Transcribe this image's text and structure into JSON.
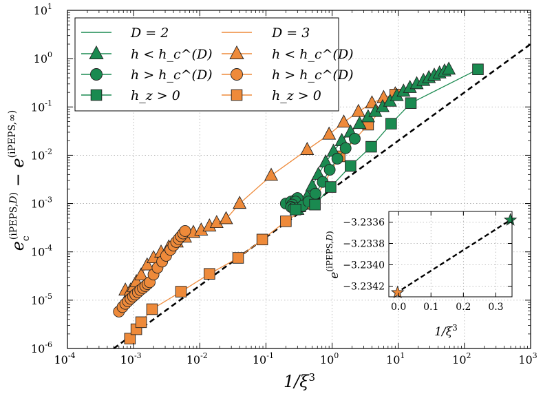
{
  "colors": {
    "green": "#1a8a50",
    "orange": "#ee8a3a",
    "edge": "#222222",
    "dashed": "#000000"
  },
  "chart_data": [
    {
      "type": "scatter",
      "scale": "log-log",
      "xlim": [
        0.0001,
        1000
      ],
      "ylim": [
        1e-06,
        10
      ],
      "xticks": [
        {
          "base": "10",
          "exp": "-4",
          "value": 0.0001
        },
        {
          "base": "10",
          "exp": "-3",
          "value": 0.001
        },
        {
          "base": "10",
          "exp": "-2",
          "value": 0.01
        },
        {
          "base": "10",
          "exp": "-1",
          "value": 0.1
        },
        {
          "base": "10",
          "exp": "0",
          "value": 1
        },
        {
          "base": "10",
          "exp": "1",
          "value": 10
        },
        {
          "base": "10",
          "exp": "2",
          "value": 100
        },
        {
          "base": "10",
          "exp": "3",
          "value": 1000
        }
      ],
      "yticks": [
        {
          "base": "10",
          "exp": "-6",
          "value": 1e-06
        },
        {
          "base": "10",
          "exp": "-5",
          "value": 1e-05
        },
        {
          "base": "10",
          "exp": "-4",
          "value": 0.0001
        },
        {
          "base": "10",
          "exp": "-3",
          "value": 0.001
        },
        {
          "base": "10",
          "exp": "-2",
          "value": 0.01
        },
        {
          "base": "10",
          "exp": "-1",
          "value": 0.1
        },
        {
          "base": "10",
          "exp": "0",
          "value": 1
        },
        {
          "base": "10",
          "exp": "1",
          "value": 10
        }
      ],
      "xlabel": "1/ξ³",
      "ylabel": "e_c^(iPEPS,D) − e^(iPEPS,∞)",
      "grid": true,
      "legend": {
        "position": "top-left",
        "entries": [
          {
            "label": "D = 2",
            "color": "green",
            "marker": "line"
          },
          {
            "label": "D = 3",
            "color": "orange",
            "marker": "line"
          },
          {
            "label": "h < h_c^(D)",
            "color": "green",
            "marker": "triangle"
          },
          {
            "label": "h < h_c^(D)",
            "color": "orange",
            "marker": "triangle"
          },
          {
            "label": "h > h_c^(D)",
            "color": "green",
            "marker": "circle"
          },
          {
            "label": "h > h_c^(D)",
            "color": "orange",
            "marker": "circle"
          },
          {
            "label": "h_z > 0",
            "color": "green",
            "marker": "square"
          },
          {
            "label": "h_z > 0",
            "color": "orange",
            "marker": "square"
          }
        ]
      },
      "reference_line": {
        "style": "dashed",
        "x": [
          0.0005,
          1000
        ],
        "y": [
          1e-06,
          2
        ]
      },
      "series": [
        {
          "name": "D=3 h<hc",
          "color": "orange",
          "marker": "triangle",
          "x": [
            0.00075,
            0.0008,
            0.00085,
            0.0009,
            0.001,
            0.0011,
            0.0013,
            0.0016,
            0.002,
            0.0026,
            0.0034,
            0.0045,
            0.006,
            0.008,
            0.0105,
            0.014,
            0.018,
            0.025,
            0.04,
            0.12,
            0.42,
            0.9,
            1.5,
            2.5,
            4,
            6,
            9
          ],
          "y": [
            1.6e-05,
            1.1e-05,
            1.3e-05,
            1.6e-05,
            1.9e-05,
            2.4e-05,
            3.3e-05,
            5.3e-05,
            7.5e-05,
            9.8e-05,
            0.000125,
            0.000158,
            0.0002,
            0.00025,
            0.00028,
            0.00034,
            0.0004,
            0.00048,
            0.001,
            0.0038,
            0.013,
            0.027,
            0.048,
            0.08,
            0.12,
            0.155,
            0.185
          ]
        },
        {
          "name": "D=3 h>hc",
          "color": "orange",
          "marker": "circle",
          "x": [
            0.0006,
            0.00068,
            0.00075,
            0.00082,
            0.0009,
            0.00098,
            0.00106,
            0.00116,
            0.00126,
            0.00138,
            0.0015,
            0.00162,
            0.00175,
            0.002,
            0.0023,
            0.0027,
            0.0031,
            0.0036,
            0.004,
            0.0044,
            0.0048,
            0.0052,
            0.0056,
            0.006
          ],
          "y": [
            5.8e-06,
            7.2e-06,
            8.4e-06,
            9.5e-06,
            1.07e-05,
            1.19e-05,
            1.31e-05,
            1.46e-05,
            1.62e-05,
            1.78e-05,
            1.96e-05,
            2.15e-05,
            2.35e-05,
            3.4e-05,
            4.7e-05,
            6.3e-05,
            8.3e-05,
            0.00011,
            0.000135,
            0.00016,
            0.000185,
            0.00021,
            0.00024,
            0.00027
          ]
        },
        {
          "name": "D=3 hz>0",
          "color": "orange",
          "marker": "square",
          "x": [
            0.00088,
            0.0011,
            0.0013,
            0.0019,
            0.0052,
            0.014,
            0.038,
            0.088,
            0.2,
            0.5,
            1.3,
            3.5,
            9
          ],
          "y": [
            1.6e-06,
            2.5e-06,
            3.5e-06,
            6.5e-06,
            1.5e-05,
            3.5e-05,
            7.5e-05,
            0.00018,
            0.00043,
            0.00098,
            0.0095,
            0.043,
            0.18
          ]
        },
        {
          "name": "D=2 h<hc",
          "color": "green",
          "marker": "triangle",
          "x": [
            0.3,
            0.32,
            0.35,
            0.42,
            0.5,
            0.62,
            0.8,
            1.05,
            1.4,
            1.9,
            2.6,
            3.5,
            4.5,
            5.8,
            7.5,
            9.5,
            12,
            15,
            19,
            24,
            29,
            35,
            42,
            50,
            58
          ],
          "y": [
            0.00075,
            0.00085,
            0.001,
            0.0014,
            0.0023,
            0.004,
            0.0072,
            0.012,
            0.02,
            0.03,
            0.045,
            0.062,
            0.08,
            0.1,
            0.13,
            0.17,
            0.21,
            0.25,
            0.3,
            0.35,
            0.4,
            0.45,
            0.5,
            0.55,
            0.6
          ]
        },
        {
          "name": "D=2 h>hc",
          "color": "green",
          "marker": "circle",
          "x": [
            0.2,
            0.24,
            0.28,
            0.3,
            0.28,
            0.25,
            0.24,
            0.26,
            0.3,
            0.36,
            0.44,
            0.56,
            0.72,
            0.92,
            1.2,
            1.6,
            2.2
          ],
          "y": [
            0.001,
            0.0011,
            0.0012,
            0.0013,
            0.0011,
            0.00095,
            0.00085,
            0.0008,
            0.0008,
            0.0009,
            0.0011,
            0.0016,
            0.0028,
            0.005,
            0.0085,
            0.014,
            0.022
          ]
        },
        {
          "name": "D=2 hz>0",
          "color": "green",
          "marker": "square",
          "x": [
            0.28,
            0.55,
            0.95,
            1.9,
            3.9,
            7.8,
            15.5,
            160
          ],
          "y": [
            0.00075,
            0.00095,
            0.0022,
            0.006,
            0.015,
            0.045,
            0.12,
            0.6
          ]
        }
      ]
    },
    {
      "type": "scatter",
      "role": "inset",
      "xlim": [
        -0.03,
        0.35
      ],
      "ylim": [
        -3.2343,
        -3.2335
      ],
      "xticks": [
        "0.0",
        "0.1",
        "0.2",
        "0.3"
      ],
      "yticks": [
        "−3.2336",
        "−3.2338",
        "−3.2340",
        "−3.2342"
      ],
      "xlabel": "1/ξ³",
      "ylabel": "e^(iPEPS,D)",
      "reference_line": {
        "style": "dashed",
        "x": [
          -0.01,
          0.345
        ],
        "y": [
          -3.23427,
          -3.23358
        ]
      },
      "series": [
        {
          "name": "D=2",
          "color": "green",
          "marker": "star",
          "x": [
            0.345
          ],
          "y": [
            -3.23358
          ]
        },
        {
          "name": "D=3",
          "color": "orange",
          "marker": "star",
          "x": [
            -0.003
          ],
          "y": [
            -3.23426
          ]
        }
      ]
    }
  ]
}
